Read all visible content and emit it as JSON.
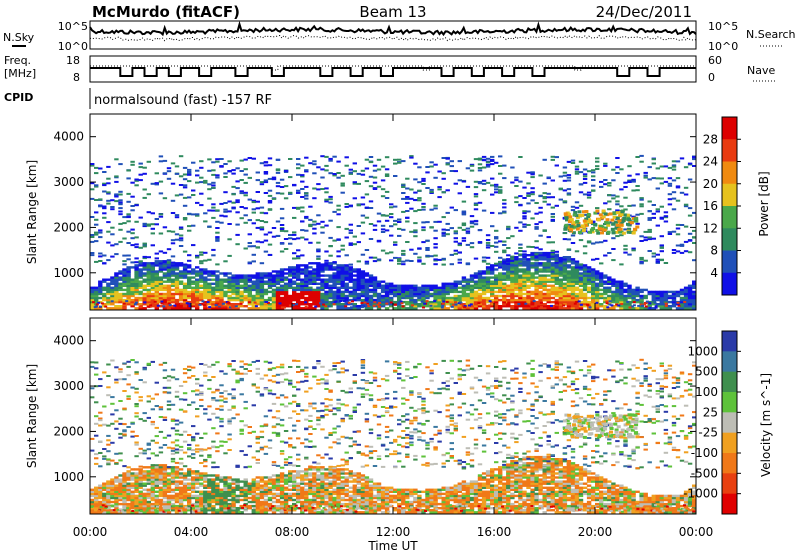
{
  "header": {
    "station": "McMurdo (fitACF)",
    "beam": "Beam 13",
    "date": "24/Dec/2011"
  },
  "top_panels": {
    "nsky_label": "N.Sky",
    "nsky_ticks": [
      "10^5",
      "10^0"
    ],
    "nsearch_label": "N.Search",
    "nsearch_ticks": [
      "10^5",
      "10^0"
    ],
    "freq_label": "Freq.",
    "freq_unit": "[MHz]",
    "freq_ticks": [
      "18",
      "8"
    ],
    "nave_label": "Nave",
    "nave_ticks": [
      "60",
      "0"
    ],
    "cpid_label": "CPID",
    "cpid_text": "normalsound (fast) -157 RF"
  },
  "chart_data": [
    {
      "type": "heatmap",
      "name": "power",
      "ylabel": "Slant Range [km]",
      "yticks": [
        "1000",
        "2000",
        "3000",
        "4000"
      ],
      "ylim": [
        180,
        4500
      ],
      "colorbar_label": "Power [dB]",
      "colorbar_ticks": [
        "4",
        "8",
        "12",
        "16",
        "20",
        "24",
        "28"
      ],
      "colors": [
        "#1010e6",
        "#2050b8",
        "#2f8a5e",
        "#4aa84a",
        "#e6c21e",
        "#f08a10",
        "#e83a10",
        "#dd0000"
      ]
    },
    {
      "type": "heatmap",
      "name": "velocity",
      "ylabel": "Slant Range [km]",
      "xlabel": "Time UT",
      "yticks": [
        "1000",
        "2000",
        "3000",
        "4000"
      ],
      "xticks": [
        "00:00",
        "04:00",
        "08:00",
        "12:00",
        "16:00",
        "20:00",
        "00:00"
      ],
      "ylim": [
        180,
        4500
      ],
      "colorbar_label": "Velocity [m s^-1]",
      "colorbar_ticks": [
        "1000",
        "500",
        "100",
        "25",
        "-25",
        "-100",
        "-500",
        "-1000"
      ],
      "colors": [
        "#2a3aa8",
        "#3a78a0",
        "#3f8f4e",
        "#5ec23a",
        "#bdbdb5",
        "#f0a020",
        "#f07818",
        "#e84010",
        "#e00000"
      ]
    }
  ]
}
